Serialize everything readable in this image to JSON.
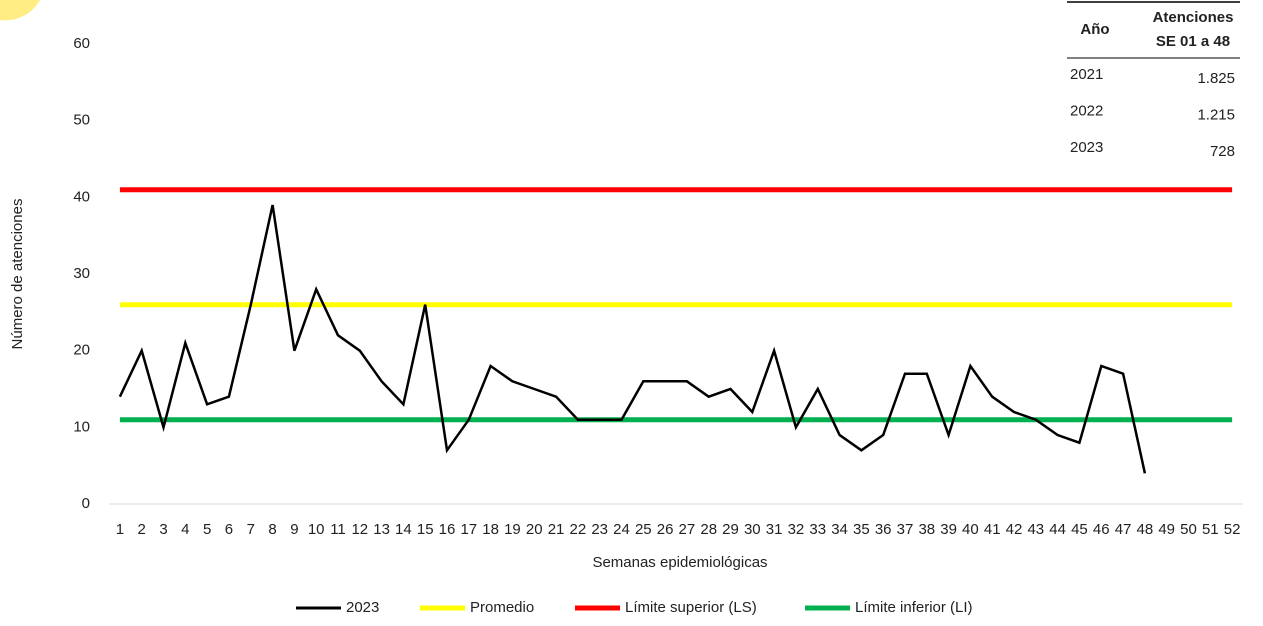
{
  "chart_data": {
    "type": "line",
    "x_label": "Semanas epidemiológicas",
    "y_label": "Número de atenciones",
    "categories": [
      "1",
      "2",
      "3",
      "4",
      "5",
      "6",
      "7",
      "8",
      "9",
      "10",
      "11",
      "12",
      "13",
      "14",
      "15",
      "16",
      "17",
      "18",
      "19",
      "20",
      "21",
      "22",
      "23",
      "24",
      "25",
      "26",
      "27",
      "28",
      "29",
      "30",
      "31",
      "32",
      "33",
      "34",
      "35",
      "36",
      "37",
      "38",
      "39",
      "40",
      "41",
      "42",
      "43",
      "44",
      "45",
      "46",
      "47",
      "48",
      "49",
      "50",
      "51",
      "52"
    ],
    "ylim": [
      0,
      60
    ],
    "yticks": [
      0,
      10,
      20,
      30,
      40,
      50,
      60
    ],
    "grid": false,
    "legend": "bottom",
    "series": [
      {
        "name": "2023",
        "color": "#000000",
        "values": [
          14,
          20,
          10,
          21,
          13,
          14,
          26,
          39,
          20,
          28,
          22,
          20,
          16,
          13,
          26,
          7,
          11,
          18,
          16,
          15,
          14,
          11,
          11,
          11,
          16,
          16,
          16,
          14,
          15,
          12,
          20,
          10,
          15,
          9,
          7,
          9,
          17,
          17,
          9,
          18,
          14,
          12,
          11,
          9,
          8,
          18,
          17,
          4,
          null,
          null,
          null,
          null
        ]
      },
      {
        "name": "Promedio",
        "color": "#ffff00",
        "values": [
          26,
          26,
          26,
          26,
          26,
          26,
          26,
          26,
          26,
          26,
          26,
          26,
          26,
          26,
          26,
          26,
          26,
          26,
          26,
          26,
          26,
          26,
          26,
          26,
          26,
          26,
          26,
          26,
          26,
          26,
          26,
          26,
          26,
          26,
          26,
          26,
          26,
          26,
          26,
          26,
          26,
          26,
          26,
          26,
          26,
          26,
          26,
          26,
          26,
          26,
          26,
          26
        ]
      },
      {
        "name": "Límite superior (LS)",
        "color": "#ff0000",
        "values": [
          41,
          41,
          41,
          41,
          41,
          41,
          41,
          41,
          41,
          41,
          41,
          41,
          41,
          41,
          41,
          41,
          41,
          41,
          41,
          41,
          41,
          41,
          41,
          41,
          41,
          41,
          41,
          41,
          41,
          41,
          41,
          41,
          41,
          41,
          41,
          41,
          41,
          41,
          41,
          41,
          41,
          41,
          41,
          41,
          41,
          41,
          41,
          41,
          41,
          41,
          41,
          41
        ]
      },
      {
        "name": "Límite inferior (LI)",
        "color": "#00b050",
        "values": [
          11,
          11,
          11,
          11,
          11,
          11,
          11,
          11,
          11,
          11,
          11,
          11,
          11,
          11,
          11,
          11,
          11,
          11,
          11,
          11,
          11,
          11,
          11,
          11,
          11,
          11,
          11,
          11,
          11,
          11,
          11,
          11,
          11,
          11,
          11,
          11,
          11,
          11,
          11,
          11,
          11,
          11,
          11,
          11,
          11,
          11,
          11,
          11,
          11,
          11,
          11,
          11
        ]
      }
    ]
  },
  "table": {
    "year_header": "Año",
    "count_header": [
      "Atenciones",
      "SE 01 a 48"
    ],
    "rows": [
      [
        "2021",
        "1.825"
      ],
      [
        "2022",
        "1.215"
      ],
      [
        "2023",
        "728"
      ]
    ]
  }
}
